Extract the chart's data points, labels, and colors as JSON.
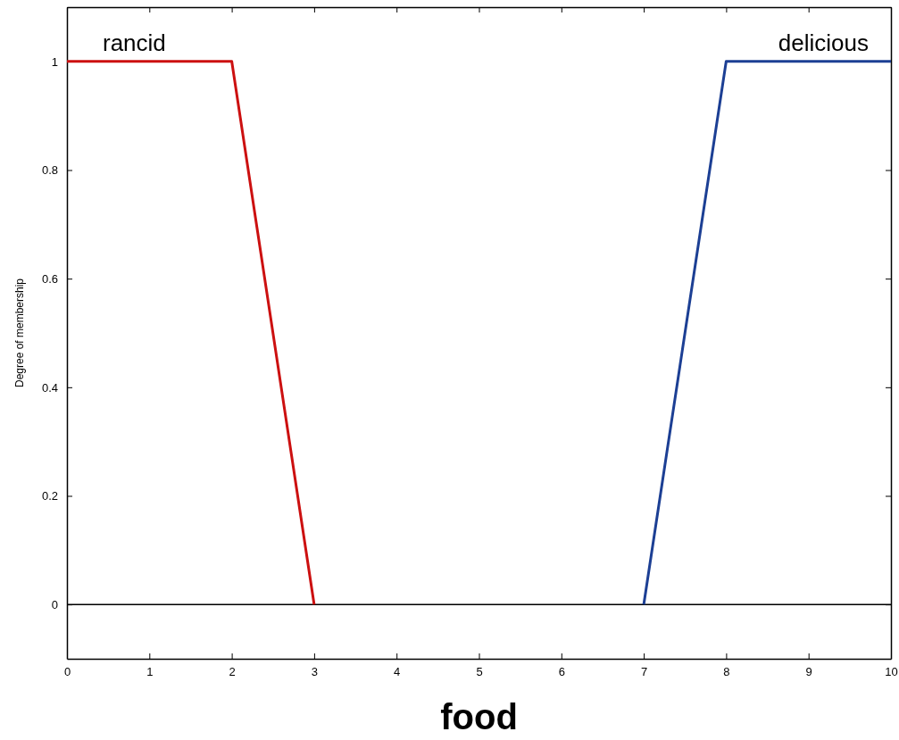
{
  "chart_data": {
    "type": "line",
    "xlabel": "food",
    "ylabel": "Degree of membership",
    "xlim": [
      0,
      10
    ],
    "ylim": [
      -0.1,
      1.1
    ],
    "xticks": [
      0,
      1,
      2,
      3,
      4,
      5,
      6,
      7,
      8,
      9,
      10
    ],
    "yticks": [
      0,
      0.2,
      0.4,
      0.6,
      0.8,
      1
    ],
    "series": [
      {
        "name": "rancid",
        "color": "#cc1010",
        "x": [
          0,
          2,
          3
        ],
        "values": [
          1,
          1,
          0
        ]
      },
      {
        "name": "delicious",
        "color": "#1c3f94",
        "x": [
          7,
          8,
          10
        ],
        "values": [
          0,
          1,
          1
        ]
      }
    ],
    "ref_lines": [
      {
        "axis": "y",
        "value": 0,
        "color": "#000000"
      }
    ],
    "grid": false,
    "marker": "none",
    "line_style": "solid"
  }
}
